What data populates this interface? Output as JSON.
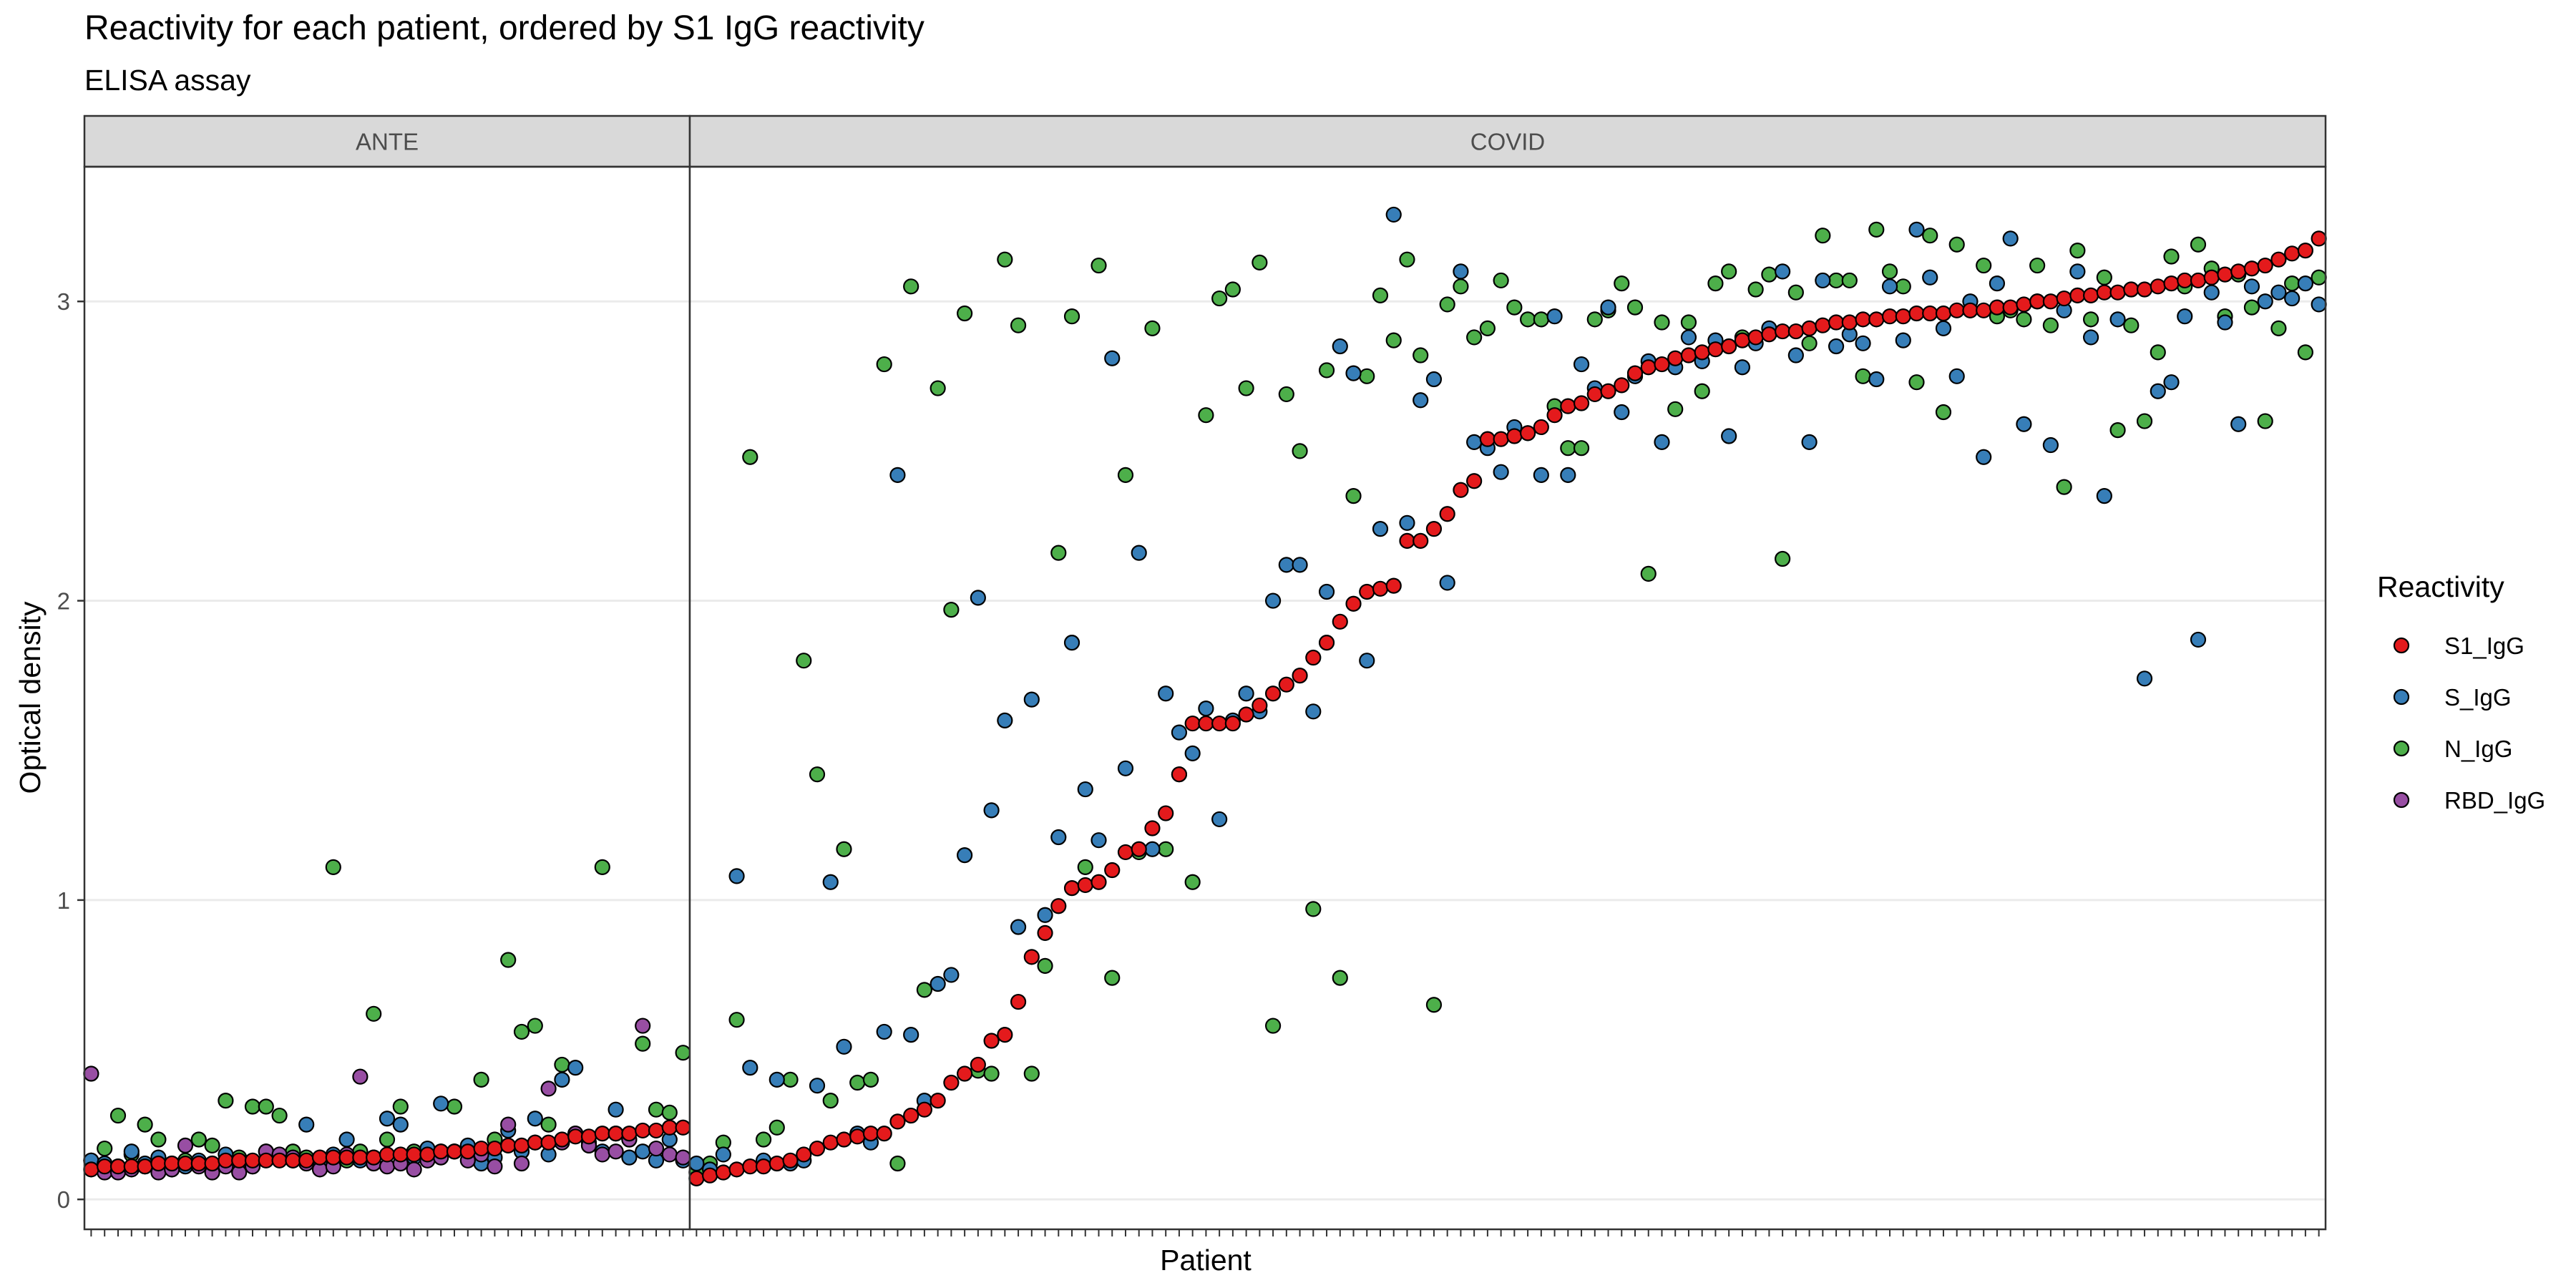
{
  "chart_data": {
    "type": "scatter",
    "title": "Reactivity for each patient, ordered by S1 IgG reactivity",
    "subtitle": "ELISA assay",
    "xlabel": "Patient",
    "ylabel": "Optical density",
    "ylim": [
      -0.1,
      3.45
    ],
    "yticks": [
      0,
      1,
      2,
      3
    ],
    "ytick_labels": [
      "0",
      "1",
      "2",
      "3"
    ],
    "grid": true,
    "legend": {
      "title": "Reactivity",
      "position": "right",
      "entries": [
        "S1_IgG",
        "S_IgG",
        "N_IgG",
        "RBD_IgG"
      ]
    },
    "series_colors": {
      "S1_IgG": "#E41A1C",
      "S_IgG": "#377EB8",
      "N_IgG": "#4DAF4A",
      "RBD_IgG": "#984EA3"
    },
    "panels": [
      {
        "label": "ANTE",
        "patients": 45,
        "series": [
          {
            "name": "S1_IgG",
            "values": [
              0.1,
              0.11,
              0.11,
              0.11,
              0.11,
              0.12,
              0.12,
              0.12,
              0.12,
              0.12,
              0.13,
              0.13,
              0.13,
              0.13,
              0.13,
              0.13,
              0.13,
              0.14,
              0.14,
              0.14,
              0.14,
              0.14,
              0.15,
              0.15,
              0.15,
              0.15,
              0.16,
              0.16,
              0.16,
              0.17,
              0.17,
              0.18,
              0.18,
              0.19,
              0.19,
              0.2,
              0.21,
              0.21,
              0.22,
              0.22,
              0.22,
              0.23,
              0.23,
              0.24,
              0.24
            ]
          },
          {
            "name": "S_IgG",
            "values": [
              0.13,
              0.12,
              0.11,
              0.16,
              0.12,
              0.14,
              0.1,
              0.11,
              0.13,
              0.12,
              0.15,
              0.12,
              0.11,
              0.16,
              0.14,
              0.13,
              0.25,
              0.12,
              0.15,
              0.2,
              0.13,
              0.14,
              0.27,
              0.25,
              0.14,
              0.17,
              0.32,
              0.16,
              0.18,
              0.12,
              0.14,
              0.23,
              0.16,
              0.27,
              0.15,
              0.4,
              0.44,
              0.18,
              0.16,
              0.3,
              0.14,
              0.16,
              0.13,
              0.2,
              0.13
            ]
          },
          {
            "name": "N_IgG",
            "values": [
              0.13,
              0.17,
              0.28,
              0.15,
              0.25,
              0.2,
              0.12,
              0.13,
              0.2,
              0.18,
              0.33,
              0.14,
              0.31,
              0.31,
              0.28,
              0.16,
              0.14,
              0.13,
              1.11,
              0.13,
              0.16,
              0.62,
              0.2,
              0.31,
              0.16,
              0.15,
              0.16,
              0.31,
              0.17,
              0.4,
              0.2,
              0.8,
              0.56,
              0.58,
              0.25,
              0.45,
              0.22,
              0.19,
              1.11,
              0.22,
              0.2,
              0.52,
              0.3,
              0.29,
              0.49
            ]
          },
          {
            "name": "RBD_IgG",
            "values": [
              0.42,
              0.09,
              0.09,
              0.1,
              0.11,
              0.09,
              0.1,
              0.18,
              0.11,
              0.09,
              0.11,
              0.09,
              0.11,
              0.16,
              0.15,
              0.14,
              0.12,
              0.1,
              0.11,
              0.15,
              0.41,
              0.12,
              0.11,
              0.12,
              0.1,
              0.13,
              0.14,
              0.16,
              0.13,
              0.15,
              0.11,
              0.25,
              0.12,
              0.19,
              0.37,
              0.19,
              0.22,
              0.18,
              0.15,
              0.16,
              0.2,
              0.58,
              0.17,
              0.15,
              0.14
            ]
          }
        ]
      },
      {
        "label": "COVID",
        "patients": 122,
        "series": [
          {
            "name": "S1_IgG",
            "values": [
              0.07,
              0.08,
              0.09,
              0.1,
              0.11,
              0.11,
              0.12,
              0.13,
              0.15,
              0.17,
              0.19,
              0.2,
              0.21,
              0.22,
              0.22,
              0.26,
              0.28,
              0.3,
              0.33,
              0.39,
              0.42,
              0.45,
              0.53,
              0.55,
              0.66,
              0.81,
              0.89,
              0.98,
              1.04,
              1.05,
              1.06,
              1.1,
              1.16,
              1.17,
              1.24,
              1.29,
              1.42,
              1.59,
              1.59,
              1.59,
              1.59,
              1.62,
              1.65,
              1.69,
              1.72,
              1.75,
              1.81,
              1.86,
              1.93,
              1.99,
              2.03,
              2.04,
              2.05,
              2.2,
              2.2,
              2.24,
              2.29,
              2.37,
              2.4,
              2.54,
              2.54,
              2.55,
              2.56,
              2.58,
              2.62,
              2.65,
              2.66,
              2.69,
              2.7,
              2.72,
              2.76,
              2.78,
              2.79,
              2.81,
              2.82,
              2.83,
              2.84,
              2.85,
              2.87,
              2.88,
              2.89,
              2.9,
              2.9,
              2.91,
              2.92,
              2.93,
              2.93,
              2.94,
              2.94,
              2.95,
              2.95,
              2.96,
              2.96,
              2.96,
              2.97,
              2.97,
              2.97,
              2.98,
              2.98,
              2.99,
              3.0,
              3.0,
              3.01,
              3.02,
              3.02,
              3.03,
              3.03,
              3.04,
              3.04,
              3.05,
              3.06,
              3.07,
              3.07,
              3.08,
              3.09,
              3.1,
              3.11,
              3.12,
              3.14,
              3.16,
              3.17,
              3.21
            ]
          },
          {
            "name": "S_IgG",
            "values": [
              0.12,
              0.1,
              0.15,
              1.08,
              0.44,
              0.13,
              0.4,
              0.12,
              0.13,
              0.38,
              1.06,
              0.51,
              0.22,
              0.19,
              0.56,
              2.42,
              0.55,
              0.33,
              0.72,
              0.75,
              1.15,
              2.01,
              1.3,
              1.6,
              0.91,
              1.67,
              0.95,
              1.21,
              1.86,
              1.37,
              1.2,
              2.81,
              1.44,
              2.16,
              1.17,
              1.69,
              1.56,
              1.49,
              1.64,
              1.27,
              1.6,
              1.69,
              1.63,
              2.0,
              2.12,
              2.12,
              1.63,
              2.03,
              2.85,
              2.76,
              1.8,
              2.24,
              3.29,
              2.26,
              2.67,
              2.74,
              2.06,
              3.1,
              2.53,
              2.51,
              2.43,
              2.58,
              2.56,
              2.42,
              2.95,
              2.42,
              2.79,
              2.71,
              2.98,
              2.63,
              2.75,
              2.8,
              2.53,
              2.78,
              2.88,
              2.8,
              2.87,
              2.55,
              2.78,
              2.86,
              2.91,
              3.1,
              2.82,
              2.53,
              3.07,
              2.85,
              2.89,
              2.86,
              2.74,
              3.05,
              2.87,
              3.24,
              3.08,
              2.91,
              2.75,
              3.0,
              2.48,
              3.06,
              3.21,
              2.59,
              3.0,
              2.52,
              2.97,
              3.1,
              2.88,
              2.35,
              2.94,
              3.04,
              1.74,
              2.7,
              2.73,
              2.95,
              1.87,
              3.03,
              2.93,
              2.59,
              3.05,
              3.0,
              3.03,
              3.01,
              3.06,
              2.99
            ]
          },
          {
            "name": "N_IgG",
            "values": [
              0.09,
              0.12,
              0.19,
              0.6,
              2.48,
              0.2,
              0.24,
              0.4,
              1.8,
              1.42,
              0.33,
              1.17,
              0.39,
              0.4,
              2.79,
              0.12,
              3.05,
              0.7,
              2.71,
              1.97,
              2.96,
              0.43,
              0.42,
              3.14,
              2.92,
              0.42,
              0.78,
              2.16,
              2.95,
              1.11,
              3.12,
              0.74,
              2.42,
              1.16,
              2.91,
              1.17,
              1.42,
              1.06,
              2.62,
              3.01,
              3.04,
              2.71,
              3.13,
              0.58,
              2.69,
              2.5,
              0.97,
              2.77,
              0.74,
              2.35,
              2.75,
              3.02,
              2.87,
              3.14,
              2.82,
              0.65,
              2.99,
              3.05,
              2.88,
              2.91,
              3.07,
              2.98,
              2.94,
              2.94,
              2.65,
              2.51,
              2.51,
              2.94,
              2.97,
              3.06,
              2.98,
              2.09,
              2.93,
              2.64,
              2.93,
              2.7,
              3.06,
              3.1,
              2.88,
              3.04,
              3.09,
              2.14,
              3.03,
              2.86,
              3.22,
              3.07,
              3.07,
              2.75,
              3.24,
              3.1,
              3.05,
              2.73,
              3.22,
              2.63,
              3.19,
              2.97,
              3.12,
              2.95,
              2.97,
              2.94,
              3.12,
              2.92,
              2.38,
              3.17,
              2.94,
              3.08,
              2.57,
              2.92,
              2.6,
              2.83,
              3.15,
              3.05,
              3.19,
              3.11,
              2.95,
              3.09,
              2.98,
              2.6,
              2.91,
              3.06,
              2.83,
              3.08
            ]
          }
        ]
      }
    ]
  }
}
